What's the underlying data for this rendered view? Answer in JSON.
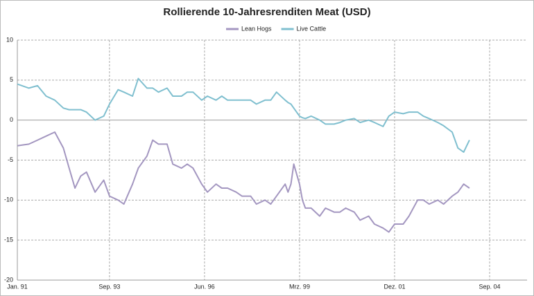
{
  "chart_data": {
    "type": "line",
    "title": "Rollierende 10-Jahresrenditen Meat (USD)",
    "x": [
      "1991-01",
      "1991-05",
      "1991-08",
      "1991-11",
      "1992-02",
      "1992-05",
      "1992-07",
      "1992-09",
      "1992-11",
      "1993-01",
      "1993-04",
      "1993-07",
      "1993-09",
      "1993-12",
      "1994-02",
      "1994-05",
      "1994-07",
      "1994-10",
      "1994-12",
      "1995-02",
      "1995-05",
      "1995-07",
      "1995-10",
      "1995-12",
      "1996-02",
      "1996-05",
      "1996-07",
      "1996-10",
      "1996-12",
      "1997-02",
      "1997-05",
      "1997-07",
      "1997-10",
      "1997-12",
      "1998-03",
      "1998-05",
      "1998-07",
      "1998-10",
      "1998-11",
      "1998-12",
      "1999-01",
      "1999-03",
      "1999-04",
      "1999-05",
      "1999-07",
      "1999-10",
      "1999-12",
      "2000-03",
      "2000-05",
      "2000-07",
      "2000-10",
      "2000-12",
      "2001-03",
      "2001-05",
      "2001-08",
      "2001-10",
      "2001-12",
      "2002-03",
      "2002-05",
      "2002-08",
      "2002-10",
      "2002-12",
      "2003-03",
      "2003-05",
      "2003-08",
      "2003-10",
      "2003-12",
      "2004-02"
    ],
    "series": [
      {
        "name": "Lean Hogs",
        "color": "#a396c0",
        "values": [
          -3.2,
          -3,
          -2.5,
          -2,
          -1.5,
          -3.5,
          -6,
          -8.5,
          -7,
          -6.5,
          -9,
          -7.5,
          -9.5,
          -10,
          -10.5,
          -8,
          -6,
          -4.5,
          -2.5,
          -3,
          -3,
          -5.5,
          -6,
          -5.5,
          -6,
          -8,
          -9,
          -8,
          -8.5,
          -8.5,
          -9,
          -9.5,
          -9.5,
          -10.5,
          -10,
          -10.5,
          -9.5,
          -8,
          -9,
          -8,
          -5.5,
          -8,
          -10,
          -11,
          -11,
          -12,
          -11,
          -11.5,
          -11.5,
          -11,
          -11.5,
          -12.5,
          -12,
          -13,
          -13.5,
          -14,
          -13,
          -13,
          -12,
          -10,
          -10,
          -10.5,
          -10,
          -10.5,
          -9.5,
          -9,
          -8,
          -8.5
        ]
      },
      {
        "name": "Live Cattle",
        "color": "#7fbfcf",
        "values": [
          4.5,
          4,
          4.3,
          3,
          2.5,
          1.5,
          1.3,
          1.3,
          1.3,
          1,
          0,
          0.5,
          2,
          3.8,
          3.5,
          3,
          5.2,
          4,
          4,
          3.5,
          4,
          3,
          3,
          3.5,
          3.5,
          2.5,
          3,
          2.5,
          3,
          2.5,
          2.5,
          2.5,
          2.5,
          2,
          2.5,
          2.5,
          3.5,
          2.5,
          2.2,
          2,
          1.5,
          0.5,
          0.3,
          0.2,
          0.5,
          0,
          -0.5,
          -0.5,
          -0.3,
          0,
          0.2,
          -0.3,
          0,
          -0.3,
          -0.8,
          0.5,
          1,
          0.8,
          1,
          1,
          0.5,
          0.2,
          -0.3,
          -0.7,
          -1.5,
          -3.5,
          -4,
          -2.5
        ]
      }
    ],
    "xlim": [
      "1991-01",
      "2005-10"
    ],
    "xticks": [
      {
        "value": "1991-01",
        "label": "Jan. 91"
      },
      {
        "value": "1993-09",
        "label": "Sep. 93"
      },
      {
        "value": "1996-06",
        "label": "Jun. 96"
      },
      {
        "value": "1999-03",
        "label": "Mrz. 99"
      },
      {
        "value": "2001-12",
        "label": "Dez. 01"
      },
      {
        "value": "2004-09",
        "label": "Sep. 04"
      }
    ],
    "ylim": [
      -20,
      10
    ],
    "yticks": [
      10,
      5,
      0,
      -5,
      -10,
      -15,
      -20
    ],
    "grid": true,
    "legend": "top"
  }
}
